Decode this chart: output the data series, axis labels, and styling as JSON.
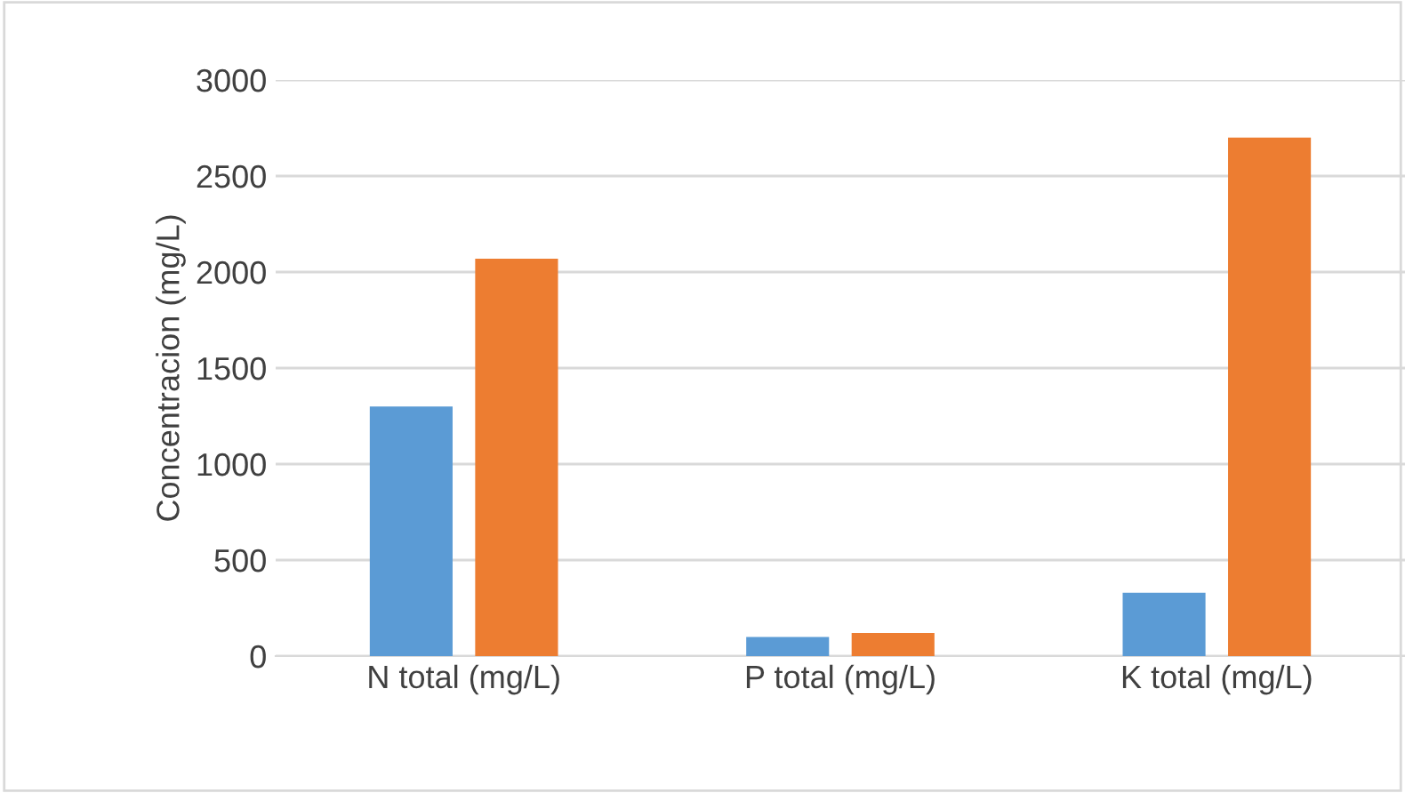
{
  "chart_data": {
    "type": "bar",
    "ylabel": "Concentracion (mg/L)",
    "categories": [
      "N total (mg/L)",
      "P total (mg/L)",
      "K total (mg/L)"
    ],
    "series": [
      {
        "color": "#5b9bd5",
        "values": [
          1300,
          100,
          330
        ]
      },
      {
        "color": "#ed7d31",
        "values": [
          2070,
          120,
          2700
        ]
      }
    ],
    "ylim": [
      0,
      3000
    ],
    "yticks": [
      0,
      500,
      1000,
      1500,
      2000,
      2500,
      3000
    ],
    "grid": "y",
    "legend": false
  }
}
